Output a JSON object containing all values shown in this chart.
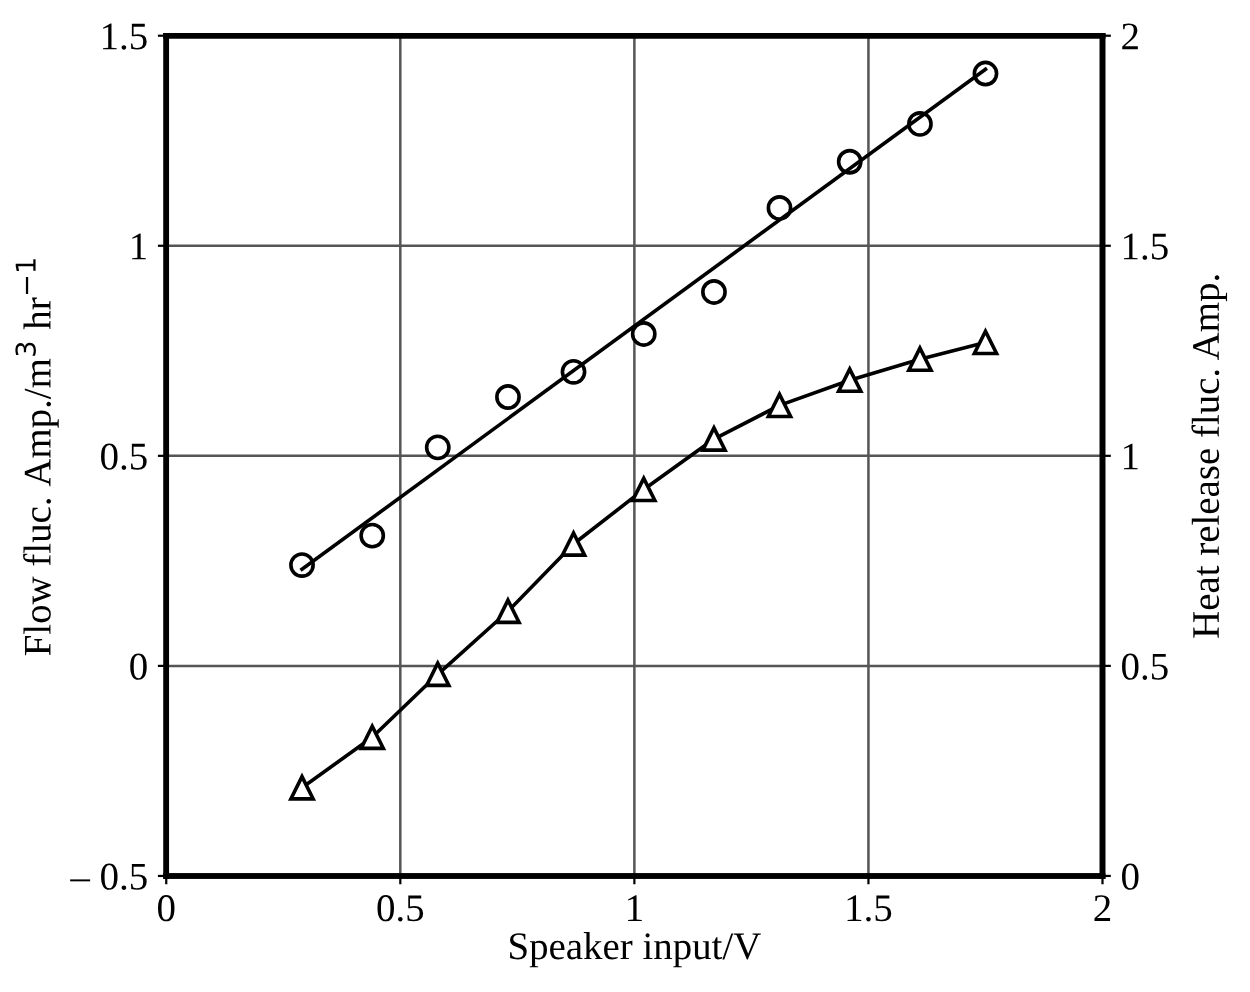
{
  "chart_data": {
    "type": "scatter",
    "xlabel": "Speaker input/V",
    "ylabel": "Flow fluc. Amp./m$^{3}$ hr$^{−1}$",
    "y2label": "Heat release fluc. Amp.",
    "xlim": [
      0,
      2
    ],
    "xticks": [
      0,
      0.5,
      1,
      1.5,
      2
    ],
    "ylim": [
      -0.5,
      1.5
    ],
    "yticks": [
      {
        "value": -0.5,
        "label": "– 0.5"
      },
      0,
      0.5,
      1,
      1.5
    ],
    "y2lim": [
      0,
      2
    ],
    "y2ticks": [
      0,
      0.5,
      1,
      1.5,
      2
    ],
    "grid": true,
    "legend": false,
    "series": [
      {
        "marker": "circle",
        "color": "#000000",
        "x": [
          0.29,
          0.44,
          0.58,
          0.73,
          0.87,
          1.02,
          1.17,
          1.31,
          1.46,
          1.61,
          1.75
        ],
        "values": [
          0.24,
          0.31,
          0.52,
          0.64,
          0.7,
          0.79,
          0.89,
          1.09,
          1.2,
          1.29,
          1.41
        ]
      },
      {
        "type": "line",
        "marker": "none",
        "color": "#000000",
        "x": [
          0.29,
          1.75
        ],
        "values": [
          0.23,
          1.42
        ]
      },
      {
        "type": "line",
        "marker": "triangle",
        "axis": "y2",
        "color": "#000000",
        "x": [
          0.29,
          0.44,
          0.58,
          0.73,
          0.87,
          1.02,
          1.17,
          1.31,
          1.46,
          1.61,
          1.75
        ],
        "values": [
          0.21,
          0.33,
          0.48,
          0.63,
          0.79,
          0.92,
          1.04,
          1.12,
          1.18,
          1.23,
          1.27
        ]
      }
    ]
  }
}
